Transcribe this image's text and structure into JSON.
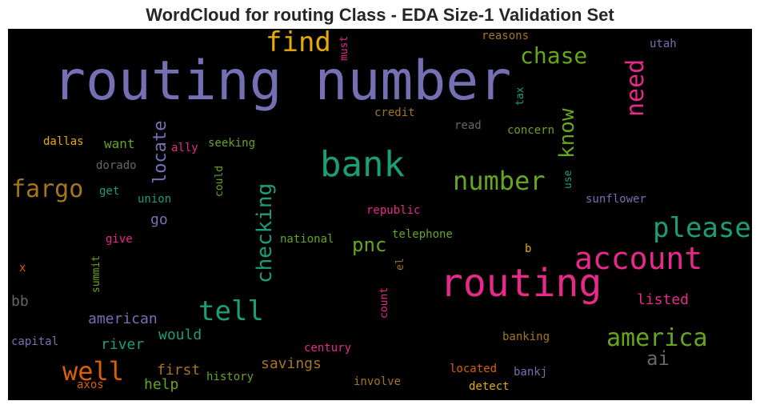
{
  "title": "WordCloud for routing Class - EDA Size-1 Validation Set",
  "palette": {
    "purple": "#7570b3",
    "teal": "#1b9e77",
    "orange": "#d95f02",
    "pink": "#e7298a",
    "green": "#66a61e",
    "gold": "#e6ab02",
    "brown": "#a6761d",
    "gray": "#666666",
    "background": "#000000"
  },
  "words": {
    "routing_number": "routing number",
    "routing": "routing",
    "bank": "bank",
    "account": "account",
    "find": "find",
    "chase": "chase",
    "need": "need",
    "number": "number",
    "please": "please",
    "fargo": "fargo",
    "tell": "tell",
    "america": "america",
    "well": "well",
    "checking": "checking",
    "know": "know",
    "locate": "locate",
    "pnc": "pnc",
    "ai": "ai",
    "must": "must",
    "reasons": "reasons",
    "utah": "utah",
    "tax": "tax",
    "credit": "credit",
    "read": "read",
    "concern": "concern",
    "dallas": "dallas",
    "want": "want",
    "ally": "ally",
    "seeking": "seeking",
    "dorado": "dorado",
    "could": "could",
    "use": "use",
    "get": "get",
    "union": "union",
    "sunflower": "sunflower",
    "republic": "republic",
    "go": "go",
    "give": "give",
    "national": "national",
    "telephone": "telephone",
    "b": "b",
    "el": "el",
    "x": "x",
    "summit": "summit",
    "count": "count",
    "bb": "bb",
    "listed": "listed",
    "american": "american",
    "would": "would",
    "capital": "capital",
    "river": "river",
    "banking": "banking",
    "century": "century",
    "savings": "savings",
    "first": "first",
    "located": "located",
    "bankj": "bankj",
    "history": "history",
    "help": "help",
    "involve": "involve",
    "axos": "axos",
    "detect": "detect"
  }
}
